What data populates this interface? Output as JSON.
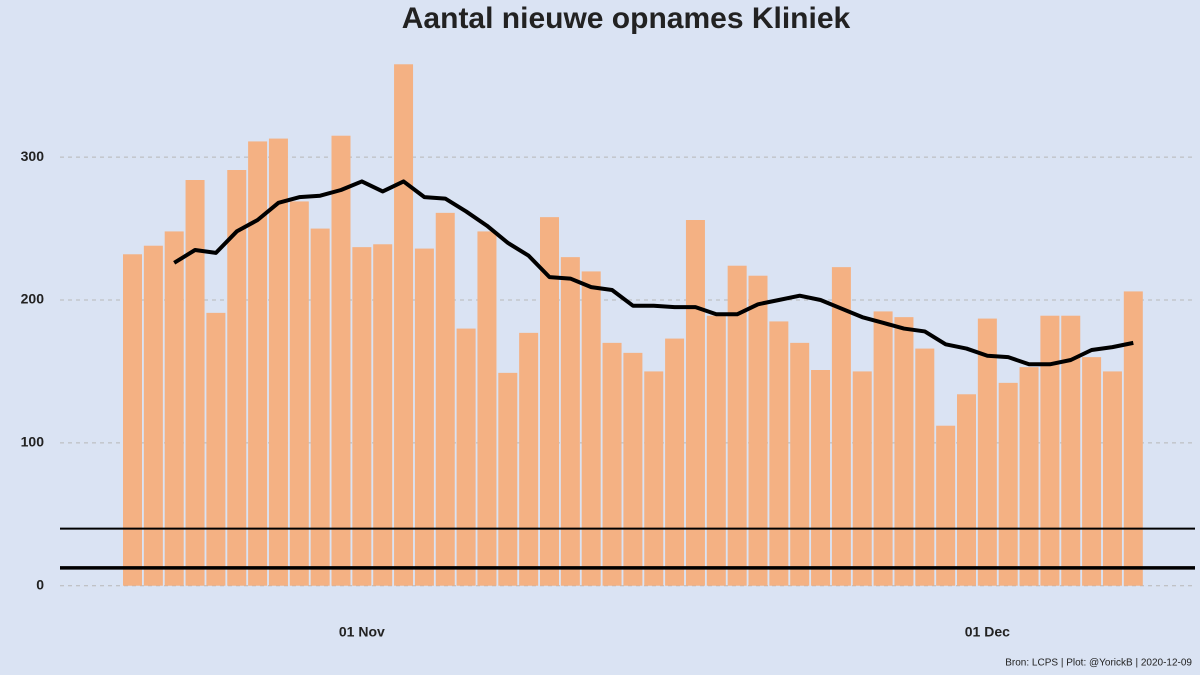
{
  "chart_data": {
    "type": "bar",
    "title": "Aantal nieuwe opnames Kliniek",
    "caption": "Bron: LCPS | Plot: @YorickB |  2020-12-09",
    "categories": [
      null,
      null,
      null,
      null,
      null,
      null,
      null,
      null,
      null,
      null,
      null,
      "01 Nov",
      null,
      null,
      null,
      null,
      null,
      null,
      null,
      null,
      null,
      null,
      null,
      null,
      null,
      null,
      null,
      null,
      null,
      null,
      null,
      null,
      null,
      null,
      null,
      null,
      null,
      null,
      null,
      null,
      null,
      "01 Dec",
      null,
      null,
      null,
      null,
      null,
      null,
      null
    ],
    "series": [
      {
        "color": "#f4b183",
        "values": [
          232,
          238,
          248,
          284,
          191,
          291,
          311,
          313,
          269,
          250,
          315,
          237,
          239,
          365,
          236,
          261,
          180,
          248,
          149,
          177,
          258,
          230,
          220,
          170,
          163,
          150,
          173,
          256,
          189,
          224,
          217,
          185,
          170,
          151,
          223,
          150,
          192,
          188,
          166,
          112,
          134,
          187,
          142,
          153,
          189,
          189,
          160,
          150,
          206
        ]
      },
      {
        "type": "line",
        "color": "#000000",
        "values": [
          null,
          null,
          226,
          235,
          233,
          248,
          256,
          268,
          272,
          273,
          277,
          283,
          276,
          283,
          272,
          271,
          262,
          252,
          240,
          231,
          216,
          215,
          209,
          207,
          196,
          196,
          195,
          195,
          190,
          190,
          197,
          200,
          203,
          200,
          194,
          188,
          184,
          180,
          178,
          169,
          166,
          161,
          160,
          155,
          155,
          158,
          165,
          167,
          170
        ]
      }
    ],
    "hlines": [
      {
        "value": 40,
        "width": 2
      },
      {
        "value": 12.5,
        "width": 3.5
      }
    ],
    "ylim": [
      -10,
      375
    ],
    "yticks": [
      0,
      100,
      200,
      300
    ],
    "grid": true
  }
}
